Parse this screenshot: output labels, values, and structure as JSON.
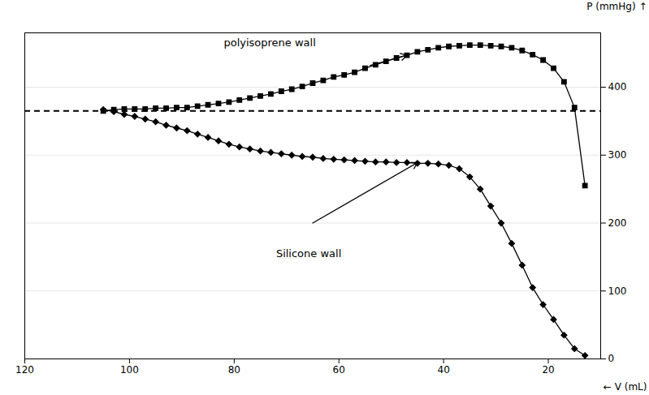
{
  "chart_data": {
    "type": "line",
    "background_color": "#ffffff",
    "x_label": "V (mL)",
    "y_label": "P (mmHg)",
    "xlim": [
      120,
      10
    ],
    "xticks": [
      120,
      100,
      80,
      60,
      40,
      20
    ],
    "ylim": [
      0,
      480
    ],
    "yticks": [
      0,
      100,
      200,
      300,
      400
    ],
    "grid": "y",
    "x": [
      105,
      103,
      101,
      99,
      97,
      95,
      93,
      91,
      89,
      87,
      85,
      83,
      81,
      79,
      77,
      75,
      73,
      71,
      69,
      67,
      65,
      63,
      61,
      59,
      57,
      55,
      53,
      51,
      49,
      47,
      45,
      43,
      41,
      39,
      37,
      35,
      33,
      31,
      29,
      27,
      25,
      23,
      21,
      19,
      17,
      15,
      13
    ],
    "series": [
      {
        "color": "black",
        "marker": "square",
        "line_style": "solid",
        "values": [
          365,
          367,
          368,
          368,
          368,
          369,
          369,
          370,
          370,
          372,
          374,
          376,
          378,
          381,
          384,
          387,
          390,
          394,
          397,
          401,
          406,
          410,
          415,
          418,
          422,
          428,
          433,
          438,
          443,
          447,
          452,
          455,
          458,
          460,
          461,
          462,
          462,
          461,
          460,
          458,
          454,
          448,
          440,
          428,
          408,
          370,
          255
        ]
      },
      {
        "color": "black",
        "marker": "diamond",
        "line_style": "solid",
        "values": [
          367,
          364,
          360,
          357,
          353,
          349,
          344,
          340,
          336,
          331,
          326,
          321,
          316,
          312,
          309,
          306,
          304,
          302,
          300,
          298,
          297,
          295,
          294,
          293,
          292,
          291,
          290,
          290,
          289,
          289,
          288,
          288,
          287,
          285,
          280,
          268,
          250,
          225,
          200,
          170,
          138,
          105,
          80,
          58,
          35,
          15,
          5
        ]
      }
    ],
    "reference_line": {
      "y": 365,
      "line_style": "dashed",
      "color": "black"
    },
    "annotations": [
      {
        "text": "polyisoprene wall",
        "x": 82,
        "y": 465,
        "arrow_from": [
          54,
          432
        ],
        "arrow_to": [
          47,
          447
        ]
      },
      {
        "text": "Silicone wall",
        "x": 72,
        "y": 155,
        "arrow_from": [
          65,
          200
        ],
        "arrow_to": [
          45,
          289
        ]
      }
    ]
  }
}
